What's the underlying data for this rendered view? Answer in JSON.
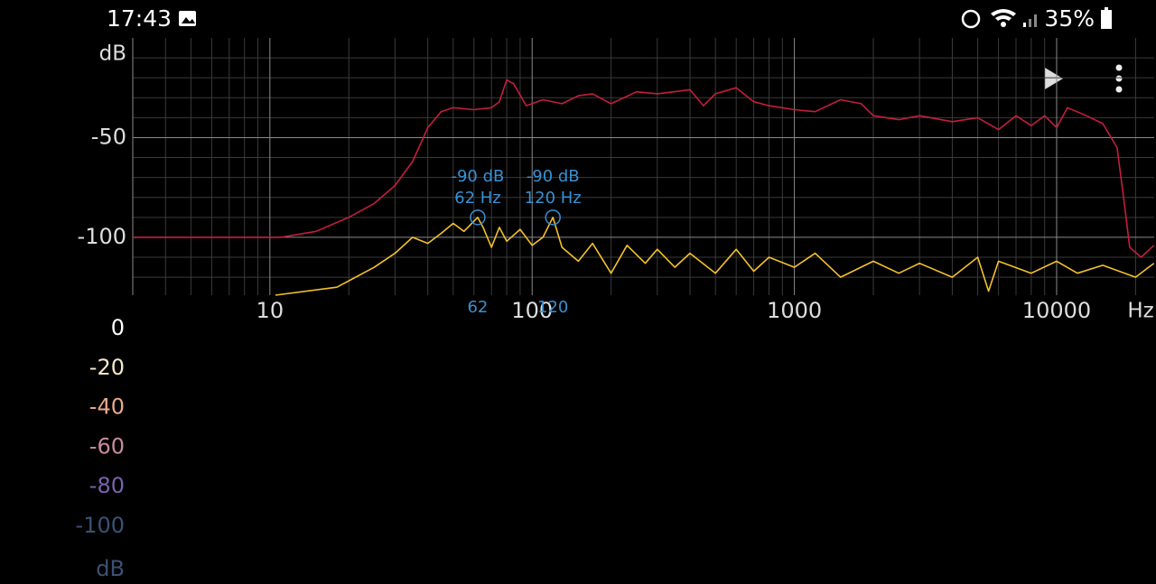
{
  "status_bar": {
    "time": "17:43",
    "battery": "35%"
  },
  "chart_data": {
    "type": "line",
    "x_label": "Hz",
    "y_label": "dB",
    "xscale": "log",
    "xlim": [
      3,
      23550
    ],
    "xticks": [
      10,
      100,
      1000,
      10000
    ],
    "xminor": [
      4,
      5,
      6,
      7,
      8,
      9,
      20,
      30,
      40,
      50,
      60,
      70,
      80,
      90,
      200,
      300,
      400,
      500,
      600,
      700,
      800,
      900,
      2000,
      3000,
      4000,
      5000,
      6000,
      7000,
      8000,
      9000,
      20000
    ],
    "ylim": [
      -129,
      0
    ],
    "yticks": [
      -50,
      -100
    ],
    "yminor": [
      -10,
      -20,
      -30,
      -40,
      -60,
      -70,
      -80,
      -90,
      -110,
      -120
    ],
    "grid": true,
    "series": [
      {
        "color": "#c21f3d",
        "x": [
          3,
          11,
          15,
          20,
          25,
          30,
          35,
          40,
          45,
          50,
          60,
          70,
          75,
          80,
          85,
          95,
          110,
          130,
          150,
          170,
          200,
          250,
          300,
          400,
          450,
          500,
          600,
          700,
          800,
          1000,
          1200,
          1500,
          1800,
          2000,
          2500,
          3000,
          4000,
          5000,
          6000,
          7000,
          8000,
          9000,
          10000,
          11000,
          13000,
          15000,
          17000,
          18000,
          19000,
          21000,
          23500
        ],
        "values": [
          -100,
          -100,
          -97,
          -90,
          -83,
          -74,
          -62,
          -45,
          -37,
          -35,
          -36,
          -35,
          -32,
          -21,
          -23,
          -34,
          -31,
          -33,
          -29,
          -28,
          -33,
          -27,
          -28,
          -26,
          -34,
          -28,
          -25,
          -32,
          -34,
          -36,
          -37,
          -31,
          -33,
          -39,
          -41,
          -39,
          -42,
          -40,
          -46,
          -39,
          -44,
          -39,
          -45,
          -35,
          -39,
          -43,
          -55,
          -80,
          -105,
          -110,
          -104
        ]
      },
      {
        "color": "#f2c12e",
        "x": [
          10.5,
          18,
          25,
          30,
          35,
          40,
          45,
          50,
          55,
          62,
          65,
          70,
          75,
          80,
          90,
          100,
          110,
          120,
          130,
          150,
          170,
          200,
          230,
          270,
          300,
          350,
          400,
          500,
          600,
          700,
          800,
          1000,
          1200,
          1500,
          2000,
          2500,
          3000,
          4000,
          5000,
          5500,
          6000,
          8000,
          10000,
          12000,
          15000,
          20000,
          23500
        ],
        "values": [
          -129,
          -125,
          -115,
          -108,
          -100,
          -103,
          -98,
          -93,
          -97,
          -90,
          -95,
          -105,
          -95,
          -102,
          -96,
          -104,
          -100,
          -90,
          -105,
          -112,
          -103,
          -118,
          -104,
          -113,
          -106,
          -115,
          -108,
          -118,
          -106,
          -117,
          -110,
          -115,
          -108,
          -120,
          -112,
          -118,
          -113,
          -120,
          -110,
          -127,
          -112,
          -118,
          -112,
          -118,
          -114,
          -120,
          -113
        ]
      }
    ],
    "markers": [
      {
        "x": 62,
        "y": -90,
        "db_label": "-90 dB",
        "hz_label": "62 Hz",
        "tick_label": "62"
      },
      {
        "x": 120,
        "y": -90,
        "db_label": "-90 dB",
        "hz_label": "120 Hz",
        "tick_label": "120"
      }
    ],
    "colorbar": {
      "unit": "dB",
      "ticks": [
        {
          "value": 0,
          "color": "#ffffff"
        },
        {
          "value": -20,
          "color": "#f4e8cc"
        },
        {
          "value": -40,
          "color": "#e7a98c"
        },
        {
          "value": -60,
          "color": "#c88aa2"
        },
        {
          "value": -80,
          "color": "#7a62ab"
        },
        {
          "value": -100,
          "color": "#3b5272"
        }
      ]
    }
  }
}
